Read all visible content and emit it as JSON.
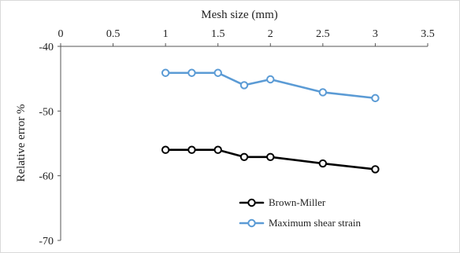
{
  "chart_data": {
    "type": "line",
    "title": "",
    "xlabel": "Mesh size (mm)",
    "ylabel": "Relative error %",
    "xlim": [
      0,
      3.5
    ],
    "ylim": [
      -70,
      -40
    ],
    "x_ticks": [
      "0",
      "0.5",
      "1",
      "1.5",
      "2",
      "2.5",
      "3",
      "3.5"
    ],
    "y_ticks": [
      "-40",
      "-50",
      "-60",
      "-70"
    ],
    "x_axis_position": "top",
    "grid": false,
    "legend_position": "bottom-right",
    "series": [
      {
        "name": "Brown-Miller",
        "color": "#000000",
        "marker": "open-circle",
        "x": [
          1,
          1.25,
          1.5,
          1.75,
          2,
          2.5,
          3
        ],
        "y": [
          -56,
          -56,
          -56,
          -57.1,
          -57.1,
          -58.1,
          -59
        ]
      },
      {
        "name": "Maximum shear strain",
        "color": "#5b9bd5",
        "marker": "open-circle",
        "x": [
          1,
          1.25,
          1.5,
          1.75,
          2,
          2.5,
          3
        ],
        "y": [
          -44.1,
          -44.1,
          -44.1,
          -46,
          -45.1,
          -47.1,
          -48
        ]
      }
    ]
  }
}
